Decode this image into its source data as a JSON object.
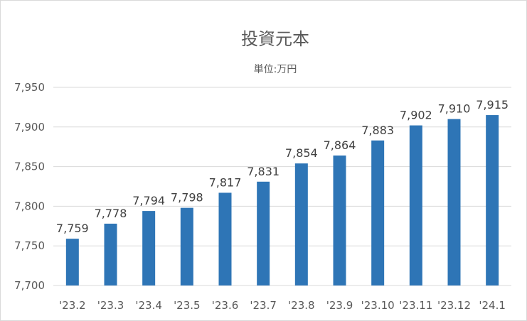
{
  "chart_data": {
    "type": "bar",
    "title": "投資元本",
    "subtitle": "単位:万円",
    "categories": [
      "'23.2",
      "'23.3",
      "'23.4",
      "'23.5",
      "'23.6",
      "'23.7",
      "'23.8",
      "'23.9",
      "'23.10",
      "'23.11",
      "'23.12",
      "'24.1"
    ],
    "values": [
      7759,
      7778,
      7794,
      7798,
      7817,
      7831,
      7854,
      7864,
      7883,
      7902,
      7910,
      7915
    ],
    "data_labels": [
      "7,759",
      "7,778",
      "7,794",
      "7,798",
      "7,817",
      "7,831",
      "7,854",
      "7,864",
      "7,883",
      "7,902",
      "7,910",
      "7,915"
    ],
    "y_ticks": [
      7700,
      7750,
      7800,
      7850,
      7900,
      7950
    ],
    "y_tick_labels": [
      "7,700",
      "7,750",
      "7,800",
      "7,850",
      "7,900",
      "7,950"
    ],
    "ylim": [
      7700,
      7950
    ],
    "grid": true,
    "legend": "none",
    "bar_color": "#2e75b6"
  }
}
